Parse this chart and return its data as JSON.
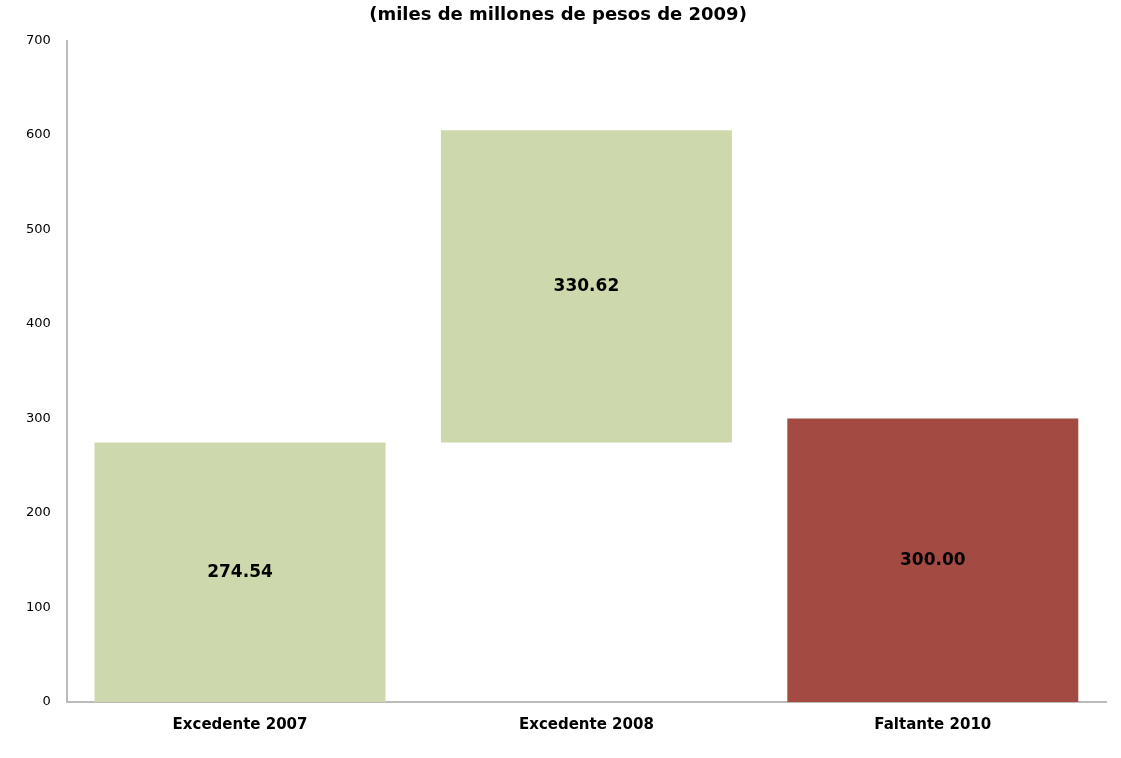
{
  "chart_data": {
    "type": "bar",
    "title": "(miles de millones de pesos de 2009)",
    "categories": [
      "Excedente 2007",
      "Excedente 2008",
      "Faltante 2010"
    ],
    "values": [
      274.54,
      330.62,
      300.0
    ],
    "base": [
      0,
      274.54,
      0
    ],
    "colors": [
      "#cdd9ac",
      "#cdd9ac",
      "#a34a42"
    ],
    "ylim": [
      0,
      700
    ],
    "yticks": [
      0,
      100,
      200,
      300,
      400,
      500,
      600,
      700
    ],
    "value_labels": [
      "274.54",
      "330.62",
      "300.00"
    ],
    "grid": false,
    "legend": false
  }
}
